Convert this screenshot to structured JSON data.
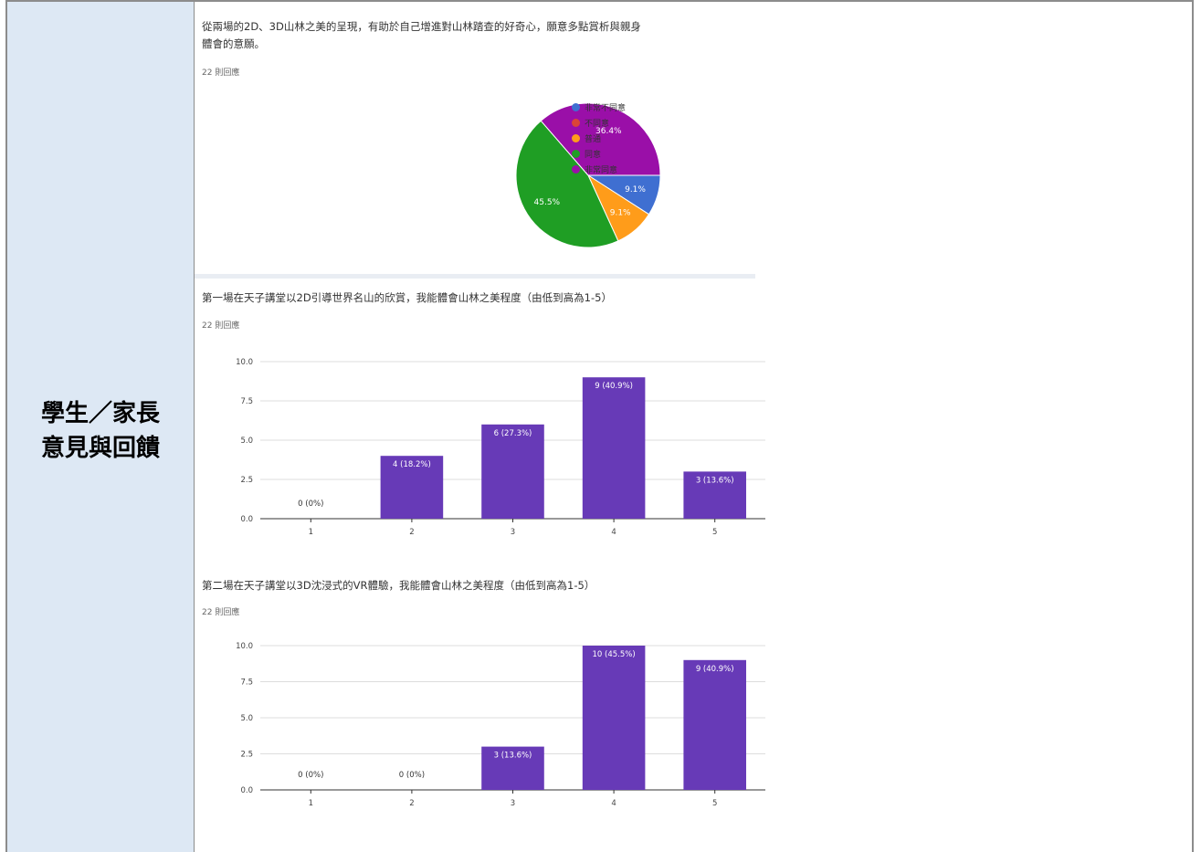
{
  "left_label": {
    "line1": "學生／家長",
    "line2": "意見與回饋"
  },
  "questions": [
    {
      "title_line1": "從兩場的2D、3D山林之美的呈現，有助於自己增進對山林踏查的好奇心，願意多點賞析與親身",
      "title_line2": "體會的意願。",
      "responses": "22 則回應"
    },
    {
      "title": "第一場在天子講堂以2D引導世界名山的欣賞，我能體會山林之美程度（由低到高為1-5）",
      "responses": "22 則回應"
    },
    {
      "title": "第二場在天子講堂以3D沈浸式的VR體驗，我能體會山林之美程度（由低到高為1-5）",
      "responses": "22 則回應"
    }
  ],
  "chart_data": [
    {
      "type": "pie",
      "categories": [
        "非常不同意",
        "不同意",
        "普通",
        "同意",
        "非常同意"
      ],
      "values": [
        9.1,
        0,
        9.1,
        45.5,
        36.4
      ],
      "labels": [
        "9.1%",
        "",
        "9.1%",
        "45.5%",
        "36.4%"
      ],
      "colors": [
        "#3f6fd1",
        "#db4437",
        "#ff9c1a",
        "#1f9e24",
        "#9a0fa8"
      ],
      "legend": "right"
    },
    {
      "type": "bar",
      "categories": [
        "1",
        "2",
        "3",
        "4",
        "5"
      ],
      "values": [
        0,
        4,
        6,
        9,
        3
      ],
      "data_labels": [
        "0 (0%)",
        "4 (18.2%)",
        "6 (27.3%)",
        "9 (40.9%)",
        "3 (13.6%)"
      ],
      "yticks": [
        "0.0",
        "2.5",
        "5.0",
        "7.5",
        "10.0"
      ],
      "ylim": [
        0,
        10
      ],
      "color": "#673ab7",
      "grid": true
    },
    {
      "type": "bar",
      "categories": [
        "1",
        "2",
        "3",
        "4",
        "5"
      ],
      "values": [
        0,
        0,
        3,
        10,
        9
      ],
      "data_labels": [
        "0 (0%)",
        "0 (0%)",
        "3 (13.6%)",
        "10 (45.5%)",
        "9 (40.9%)"
      ],
      "yticks": [
        "0.0",
        "2.5",
        "5.0",
        "7.5",
        "10.0"
      ],
      "ylim": [
        0,
        10
      ],
      "color": "#673ab7",
      "grid": true
    }
  ]
}
